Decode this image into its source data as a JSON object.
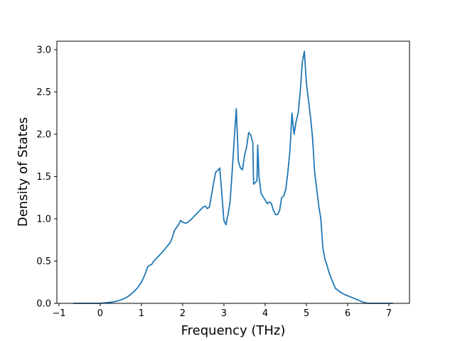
{
  "chart_data": {
    "type": "line",
    "title": "",
    "xlabel": "Frequency (THz)",
    "ylabel": "Density of States",
    "xlim": [
      -1.05,
      7.5
    ],
    "ylim": [
      0.0,
      3.1
    ],
    "x_ticks": [
      -1,
      0,
      1,
      2,
      3,
      4,
      5,
      6,
      7
    ],
    "x_tick_labels": [
      "−1",
      "0",
      "1",
      "2",
      "3",
      "4",
      "5",
      "6",
      "7"
    ],
    "y_ticks": [
      0.0,
      0.5,
      1.0,
      1.5,
      2.0,
      2.5,
      3.0
    ],
    "y_tick_labels": [
      "0.0",
      "0.5",
      "1.0",
      "1.5",
      "2.0",
      "2.5",
      "3.0"
    ],
    "grid": false,
    "series_color": "#1f77b4",
    "series": [
      {
        "x": [
          -0.65,
          -0.3,
          0.0,
          0.2,
          0.3,
          0.35,
          0.4,
          0.5,
          0.6,
          0.7,
          0.8,
          0.9,
          1.0,
          1.05,
          1.1,
          1.15,
          1.2,
          1.25,
          1.3,
          1.4,
          1.5,
          1.6,
          1.7,
          1.75,
          1.8,
          1.9,
          1.95,
          2.0,
          2.05,
          2.1,
          2.2,
          2.3,
          2.4,
          2.5,
          2.55,
          2.6,
          2.65,
          2.7,
          2.75,
          2.8,
          2.85,
          2.9,
          2.95,
          3.0,
          3.05,
          3.1,
          3.15,
          3.2,
          3.25,
          3.3,
          3.35,
          3.4,
          3.45,
          3.5,
          3.55,
          3.6,
          3.65,
          3.7,
          3.72,
          3.8,
          3.82,
          3.85,
          3.9,
          4.0,
          4.05,
          4.1,
          4.15,
          4.2,
          4.25,
          4.3,
          4.35,
          4.4,
          4.45,
          4.5,
          4.55,
          4.6,
          4.65,
          4.7,
          4.75,
          4.8,
          4.85,
          4.9,
          4.95,
          5.0,
          5.05,
          5.1,
          5.15,
          5.2,
          5.25,
          5.3,
          5.35,
          5.4,
          5.45,
          5.5,
          5.55,
          5.6,
          5.7,
          5.8,
          5.9,
          6.0,
          6.1,
          6.2,
          6.3,
          6.4,
          6.5,
          6.7,
          6.9,
          7.1
        ],
        "y": [
          0.0,
          0.0,
          0.0,
          0.01,
          0.015,
          0.02,
          0.025,
          0.04,
          0.06,
          0.09,
          0.13,
          0.18,
          0.25,
          0.3,
          0.36,
          0.43,
          0.45,
          0.46,
          0.5,
          0.55,
          0.6,
          0.66,
          0.72,
          0.78,
          0.86,
          0.93,
          0.98,
          0.96,
          0.95,
          0.95,
          0.99,
          1.04,
          1.09,
          1.14,
          1.15,
          1.12,
          1.14,
          1.28,
          1.42,
          1.55,
          1.57,
          1.6,
          1.3,
          0.98,
          0.93,
          1.05,
          1.2,
          1.55,
          1.95,
          2.3,
          1.68,
          1.6,
          1.58,
          1.75,
          1.85,
          2.02,
          1.99,
          1.9,
          1.41,
          1.45,
          1.87,
          1.5,
          1.3,
          1.22,
          1.18,
          1.2,
          1.18,
          1.1,
          1.05,
          1.05,
          1.1,
          1.25,
          1.27,
          1.35,
          1.55,
          1.8,
          2.25,
          2.0,
          2.15,
          2.25,
          2.5,
          2.85,
          2.98,
          2.6,
          2.4,
          2.2,
          1.95,
          1.55,
          1.35,
          1.15,
          1.0,
          0.65,
          0.52,
          0.45,
          0.36,
          0.3,
          0.18,
          0.14,
          0.11,
          0.09,
          0.07,
          0.05,
          0.03,
          0.01,
          0.0,
          0.0,
          0.0,
          0.0
        ]
      }
    ]
  }
}
